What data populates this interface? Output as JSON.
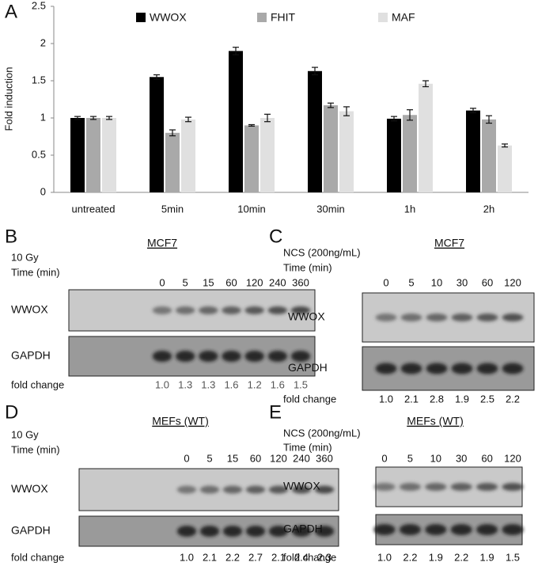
{
  "chart_data": {
    "type": "bar",
    "panel": "A",
    "ylabel": "Fold induction",
    "categories": [
      "untreated",
      "5min",
      "10min",
      "30min",
      "1h",
      "2h"
    ],
    "series": [
      {
        "name": "WWOX",
        "color": "#000000",
        "values": [
          1.0,
          1.55,
          1.9,
          1.63,
          0.99,
          1.1
        ],
        "errors": [
          0.02,
          0.03,
          0.05,
          0.05,
          0.03,
          0.03
        ]
      },
      {
        "name": "FHIT",
        "color": "#a9a9a9",
        "values": [
          1.0,
          0.8,
          0.9,
          1.17,
          1.04,
          0.98
        ],
        "errors": [
          0.02,
          0.04,
          0.01,
          0.03,
          0.07,
          0.05
        ]
      },
      {
        "name": "MAF",
        "color": "#e0e0e0",
        "values": [
          1.0,
          0.98,
          1.0,
          1.09,
          1.46,
          0.63
        ],
        "errors": [
          0.02,
          0.03,
          0.05,
          0.06,
          0.04,
          0.02
        ]
      }
    ],
    "ylim": [
      0,
      2.5
    ],
    "yticks": [
      0,
      0.5,
      1,
      1.5,
      2,
      2.5
    ],
    "grid": false
  },
  "blots": [
    {
      "letter": "B",
      "cell_line": "MCF7",
      "treatment": "10 Gy",
      "time_label": "Time (min)",
      "times": [
        "0",
        "5",
        "15",
        "60",
        "120",
        "240",
        "360"
      ],
      "rows": [
        "WWOX",
        "GAPDH"
      ],
      "fold_label": "fold change",
      "fold_values": [
        "1.0",
        "1.3",
        "1.3",
        "1.6",
        "1.2",
        "1.6",
        "1.5"
      ]
    },
    {
      "letter": "C",
      "cell_line": "MCF7",
      "treatment": "NCS (200ng/mL)",
      "time_label": "Time (min)",
      "times": [
        "0",
        "5",
        "10",
        "30",
        "60",
        "120"
      ],
      "rows": [
        "WWOX",
        "GAPDH"
      ],
      "fold_label": "fold change",
      "fold_values": [
        "1.0",
        "2.1",
        "2.8",
        "1.9",
        "2.5",
        "2.2"
      ]
    },
    {
      "letter": "D",
      "cell_line": "MEFs (WT)",
      "treatment": "10 Gy",
      "time_label": "Time (min)",
      "times": [
        "0",
        "5",
        "15",
        "60",
        "120",
        "240",
        "360"
      ],
      "rows": [
        "WWOX",
        "GAPDH"
      ],
      "fold_label": "fold change",
      "fold_values": [
        "1.0",
        "2.1",
        "2.2",
        "2.7",
        "2.1",
        "2.4",
        "2.3"
      ]
    },
    {
      "letter": "E",
      "cell_line": "MEFs (WT)",
      "treatment": "NCS (200ng/mL)",
      "time_label": "Time (min)",
      "times": [
        "0",
        "5",
        "10",
        "30",
        "60",
        "120"
      ],
      "rows": [
        "WWOX",
        "GAPDH"
      ],
      "fold_label": "fold change",
      "fold_values": [
        "1.0",
        "2.2",
        "1.9",
        "2.2",
        "1.9",
        "1.5"
      ]
    }
  ]
}
